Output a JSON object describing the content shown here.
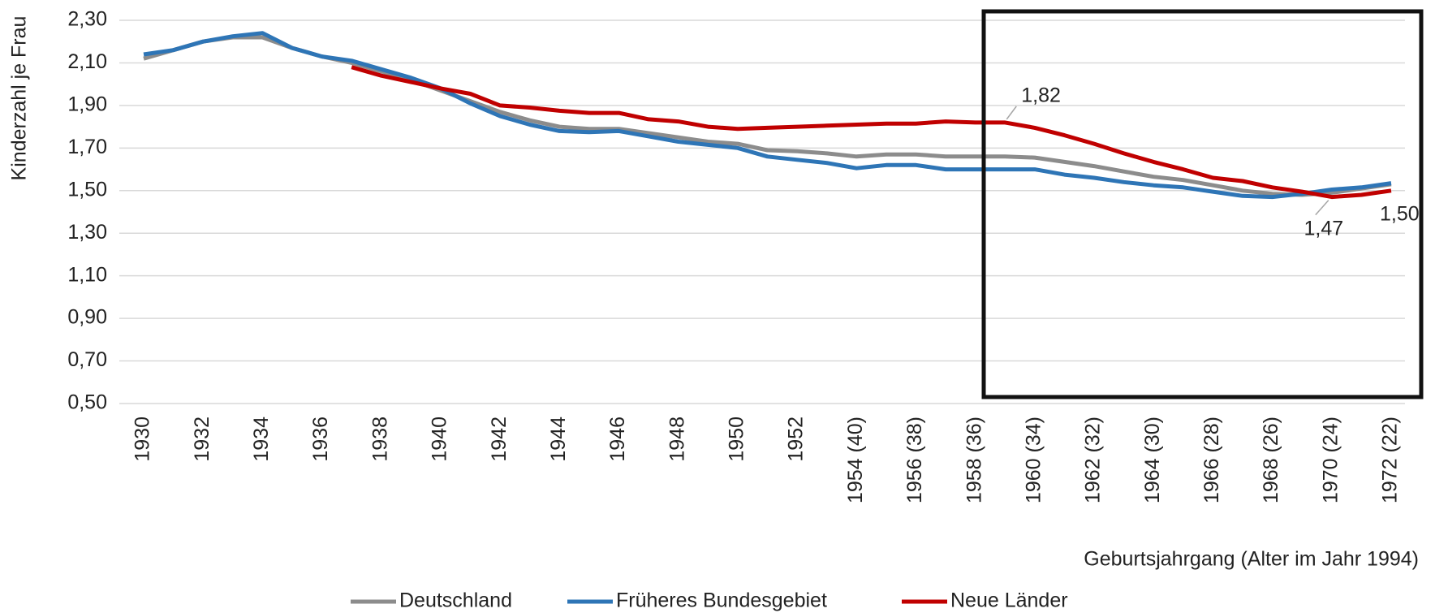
{
  "chart_data": {
    "type": "line",
    "y_label": "Kinderzahl je Frau",
    "x_label": "Geburtsjahrgang (Alter im Jahr 1994)",
    "categories": [
      "1930",
      null,
      "1932",
      null,
      "1934",
      null,
      "1936",
      null,
      "1938",
      null,
      "1940",
      null,
      "1942",
      null,
      "1944",
      null,
      "1946",
      null,
      "1948",
      null,
      "1950",
      null,
      "1952",
      null,
      "1954 (40)",
      null,
      "1956 (38)",
      null,
      "1958 (36)",
      null,
      "1960 (34)",
      null,
      "1962 (32)",
      null,
      "1964 (30)",
      null,
      "1966 (28)",
      null,
      "1968 (26)",
      null,
      "1970 (24)",
      null,
      "1972 (22)"
    ],
    "series": [
      {
        "name": "Deutschland",
        "color": "#8c8c8c",
        "values": [
          2.12,
          2.16,
          2.2,
          2.22,
          2.22,
          2.17,
          2.13,
          2.1,
          2.06,
          2.02,
          1.97,
          1.92,
          1.87,
          1.83,
          1.8,
          1.79,
          1.79,
          1.77,
          1.75,
          1.73,
          1.72,
          1.69,
          1.685,
          1.675,
          1.66,
          1.67,
          1.67,
          1.66,
          1.66,
          1.66,
          1.655,
          1.635,
          1.615,
          1.59,
          1.565,
          1.55,
          1.525,
          1.5,
          1.485,
          1.48,
          1.49,
          1.51,
          1.53
        ]
      },
      {
        "name": "Früheres Bundesgebiet",
        "color": "#2e75b6",
        "values": [
          2.14,
          2.16,
          2.2,
          2.225,
          2.24,
          2.17,
          2.13,
          2.11,
          2.07,
          2.03,
          1.98,
          1.91,
          1.85,
          1.81,
          1.78,
          1.775,
          1.78,
          1.755,
          1.73,
          1.715,
          1.7,
          1.66,
          1.645,
          1.63,
          1.605,
          1.62,
          1.62,
          1.6,
          1.6,
          1.6,
          1.6,
          1.575,
          1.56,
          1.54,
          1.525,
          1.515,
          1.495,
          1.475,
          1.47,
          1.485,
          1.505,
          1.515,
          1.535
        ]
      },
      {
        "name": "Neue Länder",
        "color": "#c00000",
        "values": [
          null,
          null,
          null,
          null,
          null,
          null,
          null,
          2.08,
          2.04,
          2.01,
          1.98,
          1.955,
          1.9,
          1.89,
          1.875,
          1.865,
          1.865,
          1.835,
          1.825,
          1.8,
          1.79,
          1.795,
          1.8,
          1.805,
          1.81,
          1.815,
          1.815,
          1.825,
          1.82,
          1.82,
          1.795,
          1.76,
          1.72,
          1.675,
          1.635,
          1.6,
          1.56,
          1.545,
          1.515,
          1.495,
          1.47,
          1.48,
          1.5
        ],
        "value_labels": [
          null,
          null,
          null,
          null,
          null,
          null,
          null,
          null,
          null,
          null,
          null,
          null,
          null,
          null,
          null,
          null,
          null,
          null,
          null,
          null,
          null,
          null,
          null,
          null,
          null,
          null,
          null,
          null,
          null,
          "1,82",
          null,
          null,
          null,
          null,
          null,
          null,
          null,
          null,
          null,
          null,
          "1,47",
          null,
          "1,50"
        ]
      }
    ],
    "ylim": [
      0.5,
      2.3
    ],
    "yticks": [
      {
        "value": 0.5,
        "label": "0,50"
      },
      {
        "value": 0.7,
        "label": "0,70"
      },
      {
        "value": 0.9,
        "label": "0,90"
      },
      {
        "value": 1.1,
        "label": "1,10"
      },
      {
        "value": 1.3,
        "label": "1,30"
      },
      {
        "value": 1.5,
        "label": "1,50"
      },
      {
        "value": 1.7,
        "label": "1,70"
      },
      {
        "value": 1.9,
        "label": "1,90"
      },
      {
        "value": 2.1,
        "label": "2,10"
      },
      {
        "value": 2.3,
        "label": "2,30"
      }
    ],
    "grid": true
  }
}
